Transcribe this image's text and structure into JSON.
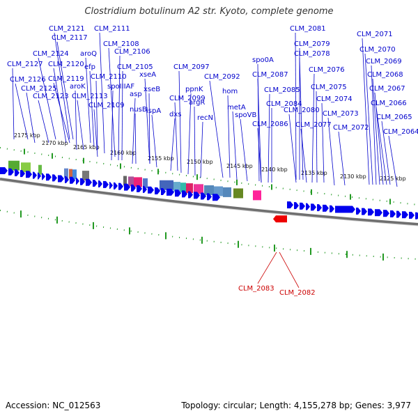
{
  "title": "Clostridium botulinum A2 str. Kyoto, complete genome",
  "footer": {
    "accession": "Accession: NC_012563",
    "summary": "Topology: circular; Length: 4,155,278 bp; Genes: 3,977"
  },
  "colors": {
    "label_forward": "#0000cc",
    "label_reverse": "#cc0000",
    "cds_forward": "#0000ee",
    "cds_reverse": "#ee0000",
    "backbone": "#888888",
    "ticks": "#229922"
  },
  "scale": {
    "ticks": [
      {
        "label": "2175 kbp"
      },
      {
        "label": "2170 kbp"
      },
      {
        "label": "2165 kbp"
      },
      {
        "label": "2160 kbp"
      },
      {
        "label": "2155 kbp"
      },
      {
        "label": "2150 kbp"
      },
      {
        "label": "2145 kbp"
      },
      {
        "label": "2140 kbp"
      },
      {
        "label": "2135 kbp"
      },
      {
        "label": "2130 kbp"
      },
      {
        "label": "2125 kbp"
      }
    ]
  },
  "forward_labels": [
    "CLM_2121",
    "CLM_2111",
    "CLM_2117",
    "aroQ",
    "CLM_2124",
    "CLM_2108",
    "CLM_2106",
    "efp",
    "CLM_2127",
    "CLM_2120",
    "CLM_2105",
    "CLM_2119",
    "CLM_2126",
    "CLM_2110",
    "xseA",
    "CLM_2125",
    "aroK",
    "spoIIIAF",
    "asp",
    "xseB",
    "CLM_2123",
    "CLM_2113",
    "nusB",
    "CLM_2109",
    "ispA",
    "CLM_2099",
    "dxs",
    "CLM_2097",
    "ppnK",
    "argR",
    "recN",
    "CLM_2092",
    "hom",
    "metA",
    "spoVB",
    "spo0A",
    "CLM_2087",
    "CLM_2085",
    "CLM_2084",
    "CLM_2086",
    "CLM_2081",
    "CLM_2079",
    "CLM_2078",
    "CLM_2076",
    "CLM_2075",
    "CLM_2074",
    "CLM_2080",
    "CLM_2077",
    "CLM_2073",
    "CLM_2072",
    "CLM_2071",
    "CLM_2070",
    "CLM_2069",
    "CLM_2068",
    "CLM_2067",
    "CLM_2066",
    "CLM_2065",
    "CLM_2064"
  ],
  "reverse_labels": [
    "CLM_2083",
    "CLM_2082"
  ]
}
